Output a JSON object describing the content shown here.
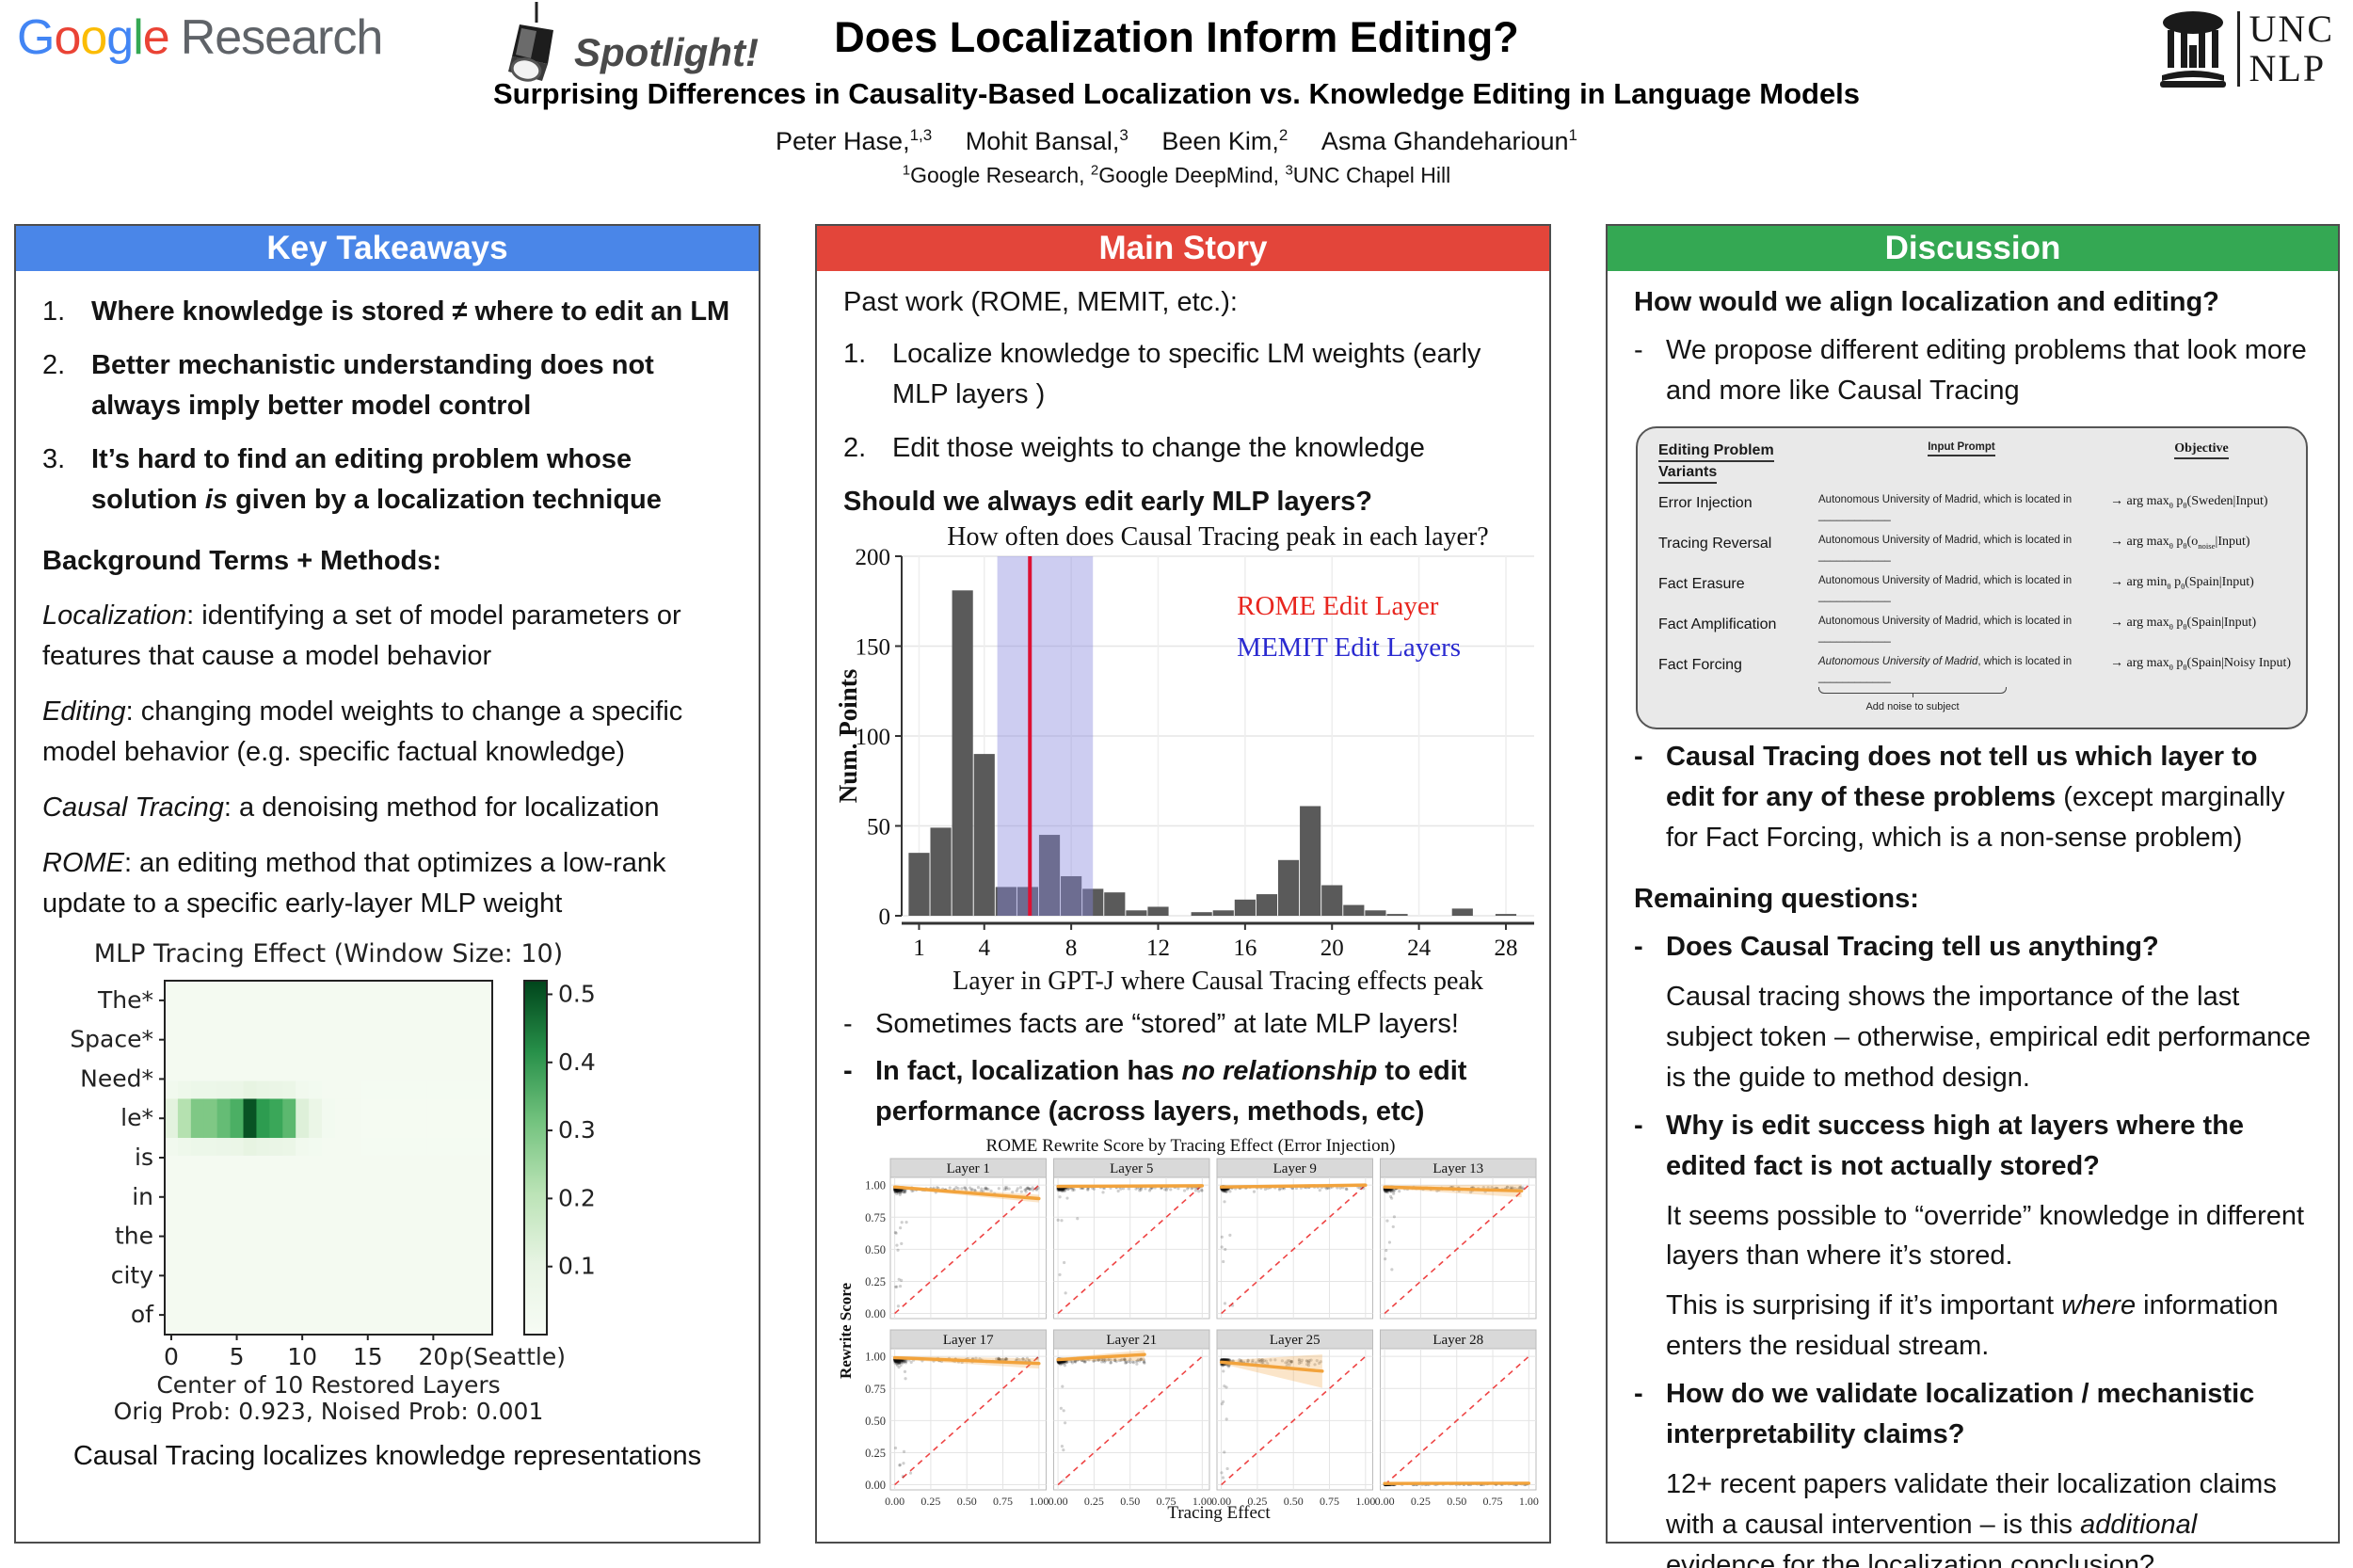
{
  "header": {
    "google_logo_letters": [
      {
        "ch": "G",
        "color": "#4285F4"
      },
      {
        "ch": "o",
        "color": "#EA4335"
      },
      {
        "ch": "o",
        "color": "#FBBC05"
      },
      {
        "ch": "g",
        "color": "#4285F4"
      },
      {
        "ch": "l",
        "color": "#34A853"
      },
      {
        "ch": "e",
        "color": "#EA4335"
      }
    ],
    "google_research_word": "Research",
    "spotlight": "Spotlight!",
    "title": "Does Localization Inform Editing?",
    "subtitle": "Surprising Differences in Causality-Based Localization vs. Knowledge Editing in Language Models",
    "authors": [
      {
        "name": "Peter Hase,",
        "sup": "1,3"
      },
      {
        "name": "Mohit Bansal,",
        "sup": "3"
      },
      {
        "name": "Been Kim,",
        "sup": "2"
      },
      {
        "name": "Asma Ghandeharioun",
        "sup": "1"
      }
    ],
    "affiliations": [
      {
        "sup": "1",
        "text": "Google Research, "
      },
      {
        "sup": "2",
        "text": "Google DeepMind, "
      },
      {
        "sup": "3",
        "text": "UNC Chapel Hill"
      }
    ],
    "unc_logo": {
      "top": "UNC",
      "bottom": "NLP"
    }
  },
  "panels": {
    "takeaways": {
      "title": "Key Takeaways",
      "color": "#4a86e8",
      "markers": [
        "1.",
        "2.",
        "3."
      ],
      "items": [
        [
          {
            "t": "Where knowledge is stored ≠ where to edit an LM",
            "b": 1
          }
        ],
        [
          {
            "t": "Better mechanistic understanding does not always imply better model control",
            "b": 1
          }
        ],
        [
          {
            "t": "It’s hard to find an editing problem whose solution ",
            "b": 1
          },
          {
            "t": "is",
            "b": 1,
            "i": 1
          },
          {
            "t": " given by a localization technique",
            "b": 1
          }
        ]
      ],
      "bg_heading": "Background Terms + Methods:",
      "terms": [
        [
          {
            "t": "Localization",
            "i": 1
          },
          {
            "t": ": identifying a set of model parameters or features that cause a model behavior"
          }
        ],
        [
          {
            "t": "Editing",
            "i": 1
          },
          {
            "t": ": changing model weights to change a specific model behavior (e.g. specific factual knowledge)"
          }
        ],
        [
          {
            "t": "Causal Tracing",
            "i": 1
          },
          {
            "t": ": a denoising method for localization"
          }
        ],
        [
          {
            "t": "ROME",
            "i": 1
          },
          {
            "t": ": an editing method that optimizes a low-rank update to a specific early-layer MLP weight"
          }
        ]
      ]
    },
    "main": {
      "title": "Main Story",
      "color": "#e3453a",
      "intro": "Past work (ROME, MEMIT, etc.):",
      "step_markers": [
        "1.",
        "2."
      ],
      "steps": [
        "Localize knowledge to specific LM weights (early MLP layers )",
        "Edit those weights to change the knowledge"
      ],
      "question": "Should we always edit early MLP layers?",
      "bullet_marker": "-",
      "bullets": [
        [
          {
            "t": "Sometimes facts are “stored” at late MLP layers!"
          }
        ],
        [
          {
            "t": "In fact, localization has ",
            "b": 1
          },
          {
            "t": "no relationship",
            "b": 1,
            "i": 1
          },
          {
            "t": " to edit performance (across layers, methods, etc)",
            "b": 1
          }
        ]
      ]
    },
    "discussion": {
      "title": "Discussion",
      "color": "#34a853",
      "bullet_marker": "-",
      "q1": "How would we align localization and editing?",
      "q1_bullet": [
        {
          "t": "We propose different editing problems that look more and more like Causal Tracing"
        }
      ],
      "table": {
        "headers": [
          "Editing Problem Variants",
          "Input Prompt",
          "Objective"
        ],
        "rows": [
          {
            "label": "Error Injection",
            "prompt": [
              {
                "t": "Autonomous University of Madrid, which is located in ____________"
              }
            ],
            "objective": [
              {
                "t": "→ arg max"
              },
              {
                "t": "θ",
                "sub": 1
              },
              {
                "t": " p"
              },
              {
                "t": "θ",
                "sub": 1
              },
              {
                "t": "(Sweden|Input)"
              }
            ]
          },
          {
            "label": "Tracing Reversal",
            "prompt": [
              {
                "t": "Autonomous University of Madrid, which is located in ____________"
              }
            ],
            "objective": [
              {
                "t": "→ arg max"
              },
              {
                "t": "θ",
                "sub": 1
              },
              {
                "t": " p"
              },
              {
                "t": "θ",
                "sub": 1
              },
              {
                "t": "(o"
              },
              {
                "t": "noise",
                "sub": 1
              },
              {
                "t": "|Input)"
              }
            ]
          },
          {
            "label": "Fact Erasure",
            "prompt": [
              {
                "t": "Autonomous University of Madrid, which is located in ____________"
              }
            ],
            "objective": [
              {
                "t": "→ arg min"
              },
              {
                "t": "θ",
                "sub": 1
              },
              {
                "t": " p"
              },
              {
                "t": "θ",
                "sub": 1
              },
              {
                "t": "(Spain|Input)"
              }
            ]
          },
          {
            "label": "Fact Amplification",
            "prompt": [
              {
                "t": "Autonomous University of Madrid, which is located in ____________"
              }
            ],
            "objective": [
              {
                "t": "→ arg max"
              },
              {
                "t": "θ",
                "sub": 1
              },
              {
                "t": " p"
              },
              {
                "t": "θ",
                "sub": 1
              },
              {
                "t": "(Spain|Input)"
              }
            ]
          },
          {
            "label": "Fact Forcing",
            "prompt": [
              {
                "t": "Autonomous University of Madrid",
                "i": 1
              },
              {
                "t": ", which is located in ____________"
              }
            ],
            "brace_label": "Add noise to subject",
            "objective": [
              {
                "t": "→ arg max"
              },
              {
                "t": "θ",
                "sub": 1
              },
              {
                "t": " p"
              },
              {
                "t": "θ",
                "sub": 1
              },
              {
                "t": "(Spain|Noisy Input)"
              }
            ]
          }
        ]
      },
      "ct_bullet": [
        {
          "t": "Causal Tracing does not tell us which layer to edit for any of these problems ",
          "b": 1
        },
        {
          "t": "(except marginally for Fact Forcing, which is a non-sense problem)"
        }
      ],
      "remaining": "Remaining questions:",
      "qa": [
        {
          "q": [
            {
              "t": "Does Causal Tracing tell us anything?",
              "b": 1
            }
          ],
          "a": [
            [
              {
                "t": "Causal tracing shows the importance of the last subject token – otherwise, empirical edit performance is the guide to method design."
              }
            ]
          ]
        },
        {
          "q": [
            {
              "t": "Why is edit success high at layers where the edited fact is not actually stored?",
              "b": 1
            }
          ],
          "a": [
            [
              {
                "t": "It seems possible to “override” knowledge in different layers than where it’s stored."
              }
            ],
            [
              {
                "t": "This is surprising if it’s important "
              },
              {
                "t": "where",
                "i": 1
              },
              {
                "t": " information enters the residual stream."
              }
            ]
          ]
        },
        {
          "q": [
            {
              "t": "How do we validate localization / mechanistic interpretability claims?",
              "b": 1
            }
          ],
          "a": [
            [
              {
                "t": "12+ recent papers validate their localization claims with a causal intervention – is this "
              },
              {
                "t": "additional",
                "i": 1
              },
              {
                "t": " evidence for the localization conclusion?"
              }
            ]
          ]
        }
      ]
    }
  },
  "chart_data": [
    {
      "id": "mlp-tracing-heatmap",
      "type": "heatmap",
      "title": "MLP Tracing Effect (Window Size: 10)",
      "rows": [
        "The*",
        "Space*",
        "Need*",
        "le*",
        "is",
        "in",
        "the",
        "city",
        "of"
      ],
      "highlight_row_index": 3,
      "n_cols": 25,
      "le_values": [
        0.13,
        0.22,
        0.3,
        0.3,
        0.33,
        0.36,
        0.5,
        0.4,
        0.38,
        0.34,
        0.14,
        0.08,
        0.03,
        0.02,
        0.02,
        0.015,
        0.015,
        0.015,
        0.015,
        0.015,
        0.015,
        0.015,
        0.015,
        0.015,
        0.015
      ],
      "bleed": 0.18,
      "baseline": 0.02,
      "xticks": [
        0,
        5,
        10,
        15,
        20
      ],
      "xlabel": "Center of 10 Restored Layers",
      "xlabel2": "Orig Prob: 0.923, Noised Prob: 0.001",
      "colorbar": {
        "ticks": [
          0.1,
          0.2,
          0.3,
          0.4,
          0.5
        ],
        "max": 0.52,
        "label": "p(Seattle)"
      },
      "caption": "Causal Tracing localizes knowledge representations"
    },
    {
      "id": "peak-histogram",
      "type": "bar",
      "title": "How often does Causal Tracing peak in each layer?",
      "xlabel": "Layer in GPT-J where Causal Tracing effects peak",
      "ylabel": "Num. Points",
      "x_start": 1,
      "values": [
        35,
        49,
        181,
        90,
        16,
        16,
        45,
        22,
        15,
        13,
        3,
        5,
        0,
        2,
        3,
        9,
        12,
        31,
        61,
        17,
        6,
        3,
        1,
        0,
        0,
        4,
        0,
        1
      ],
      "xticks": [
        1,
        4,
        8,
        12,
        16,
        20,
        24,
        28
      ],
      "yticks": [
        0,
        50,
        100,
        150,
        200
      ],
      "ylim": [
        0,
        200
      ],
      "xlim": [
        0.2,
        29.3
      ],
      "rome_line_x": 6.1,
      "memit_band": [
        4.6,
        9.0
      ],
      "bar_color": "#5a5a5a",
      "band_color": "#8888dd",
      "line_color": "#dd1133",
      "legend": [
        {
          "label": "ROME Edit Layer",
          "color": "#e8261f"
        },
        {
          "label": "MEMIT Edit Layers",
          "color": "#2a2ad0"
        }
      ]
    },
    {
      "id": "rewrite-scatter-grid",
      "type": "scatter-grid",
      "title": "ROME Rewrite Score by Tracing Effect (Error Injection)",
      "xlabel": "Tracing Effect",
      "ylabel": "Rewrite Score",
      "xticks": [
        "0.00",
        "0.25",
        "0.50",
        "0.75",
        "1.00"
      ],
      "yticks": [
        "0.00",
        "0.25",
        "0.50",
        "0.75",
        "1.00"
      ],
      "diag_color": "#ee4444",
      "trend_color": "#f2a33c",
      "point_color": "#111111",
      "panels": [
        {
          "label": "Layer 1",
          "cy": 0.982,
          "ysd": 0.018,
          "xmax": 1.0,
          "n": 250,
          "nout": 14,
          "trend": {
            "x0": 0,
            "y0": 0.985,
            "x1": 1.0,
            "y1": 0.895
          },
          "ci": 0.03
        },
        {
          "label": "Layer 5",
          "cy": 0.988,
          "ysd": 0.014,
          "xmax": 1.0,
          "n": 250,
          "nout": 8,
          "trend": {
            "x0": 0,
            "y0": 0.99,
            "x1": 1.0,
            "y1": 0.995
          },
          "ci": 0.015
        },
        {
          "label": "Layer 9",
          "cy": 0.988,
          "ysd": 0.014,
          "xmax": 1.0,
          "n": 250,
          "nout": 8,
          "trend": {
            "x0": 0,
            "y0": 0.985,
            "x1": 1.0,
            "y1": 1.0
          },
          "ci": 0.015
        },
        {
          "label": "Layer 13",
          "cy": 0.985,
          "ysd": 0.016,
          "xmax": 0.97,
          "n": 250,
          "nout": 9,
          "trend": {
            "x0": 0,
            "y0": 0.985,
            "x1": 0.95,
            "y1": 0.955
          },
          "ci": 0.05
        },
        {
          "label": "Layer 17",
          "cy": 0.985,
          "ysd": 0.016,
          "xmax": 1.0,
          "n": 250,
          "nout": 10,
          "trend": {
            "x0": 0,
            "y0": 0.99,
            "x1": 1.0,
            "y1": 0.945
          },
          "ci": 0.04
        },
        {
          "label": "Layer 21",
          "cy": 0.98,
          "ysd": 0.016,
          "xmax": 0.6,
          "n": 240,
          "nout": 8,
          "trend": {
            "x0": 0,
            "y0": 0.975,
            "x1": 0.6,
            "y1": 1.015
          },
          "ci": 0.05
        },
        {
          "label": "Layer 25",
          "cy": 0.975,
          "ysd": 0.02,
          "xmax": 0.7,
          "n": 230,
          "nout": 10,
          "trend": {
            "x0": 0,
            "y0": 0.955,
            "x1": 0.7,
            "y1": 0.885
          },
          "ci": 0.13
        },
        {
          "label": "Layer 28",
          "cy": 0.01,
          "ysd": 0.008,
          "xmax": 1.0,
          "n": 240,
          "nout": 0,
          "trend": {
            "x0": 0,
            "y0": 0.01,
            "x1": 1.0,
            "y1": 0.012
          },
          "ci": 0.01
        }
      ]
    }
  ]
}
